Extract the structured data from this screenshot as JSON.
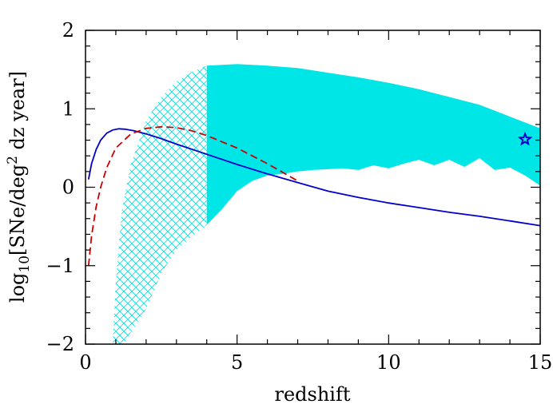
{
  "chart_data": {
    "type": "line",
    "xlabel": "redshift",
    "ylabel": {
      "prefix": "log",
      "subscript": "10",
      "body": "[SNe/deg",
      "superscript": "2",
      "suffix": " dz year]"
    },
    "xlim": [
      0,
      15
    ],
    "ylim": [
      -2,
      2
    ],
    "x_ticks": [
      0,
      5,
      10,
      15
    ],
    "x_tick_labels": [
      "0",
      "5",
      "10",
      "15"
    ],
    "y_ticks": [
      -2,
      -1,
      0,
      1,
      2
    ],
    "y_tick_labels": [
      "−2",
      "−1",
      "0",
      "1",
      "2"
    ],
    "colors": {
      "band": "#00e5e5",
      "solid_line": "#0000cc",
      "dashed_line": "#cc0000",
      "star": "#0000cc"
    },
    "band": {
      "crosshatch_range": [
        0,
        4
      ],
      "upper": [
        [
          0.9,
          -2.0
        ],
        [
          1.0,
          -1.2
        ],
        [
          1.2,
          -0.3
        ],
        [
          1.5,
          0.3
        ],
        [
          2.0,
          0.85
        ],
        [
          2.5,
          1.15
        ],
        [
          3.0,
          1.35
        ],
        [
          3.5,
          1.47
        ],
        [
          4.0,
          1.55
        ],
        [
          5.0,
          1.57
        ],
        [
          6.0,
          1.55
        ],
        [
          7.0,
          1.52
        ],
        [
          8.0,
          1.46
        ],
        [
          9.0,
          1.4
        ],
        [
          10.0,
          1.33
        ],
        [
          11.0,
          1.25
        ],
        [
          12.0,
          1.15
        ],
        [
          13.0,
          1.05
        ],
        [
          14.0,
          0.9
        ],
        [
          15.0,
          0.75
        ]
      ],
      "lower": [
        [
          1.25,
          -2.0
        ],
        [
          2.0,
          -1.55
        ],
        [
          2.5,
          -1.1
        ],
        [
          3.0,
          -0.8
        ],
        [
          3.5,
          -0.63
        ],
        [
          4.0,
          -0.48
        ],
        [
          4.5,
          -0.28
        ],
        [
          5.0,
          -0.05
        ],
        [
          5.5,
          0.08
        ],
        [
          6.0,
          0.15
        ],
        [
          6.5,
          0.17
        ],
        [
          7.0,
          0.2
        ],
        [
          7.5,
          0.22
        ],
        [
          8.0,
          0.23
        ],
        [
          8.5,
          0.24
        ],
        [
          9.0,
          0.22
        ],
        [
          9.5,
          0.28
        ],
        [
          10.0,
          0.24
        ],
        [
          10.5,
          0.3
        ],
        [
          11.0,
          0.35
        ],
        [
          11.5,
          0.28
        ],
        [
          12.0,
          0.35
        ],
        [
          12.5,
          0.26
        ],
        [
          13.0,
          0.37
        ],
        [
          13.5,
          0.22
        ],
        [
          14.0,
          0.25
        ],
        [
          14.5,
          0.15
        ],
        [
          15.0,
          0.02
        ]
      ]
    },
    "series": [
      {
        "style": "solid",
        "x": [
          0.1,
          0.2,
          0.35,
          0.5,
          0.7,
          0.9,
          1.1,
          1.3,
          1.6,
          2.0,
          2.5,
          3.0,
          4.0,
          5.0,
          6.0,
          7.0,
          8.0,
          9.0,
          10.0,
          11.0,
          12.0,
          13.0,
          14.0,
          15.0
        ],
        "y": [
          0.1,
          0.3,
          0.48,
          0.6,
          0.69,
          0.73,
          0.745,
          0.74,
          0.72,
          0.68,
          0.62,
          0.55,
          0.42,
          0.29,
          0.17,
          0.06,
          -0.05,
          -0.13,
          -0.2,
          -0.26,
          -0.32,
          -0.37,
          -0.43,
          -0.49
        ]
      },
      {
        "style": "dashed",
        "x": [
          0.1,
          0.2,
          0.35,
          0.5,
          0.7,
          1.0,
          1.5,
          2.0,
          2.5,
          3.0,
          3.5,
          4.0,
          5.0,
          6.0,
          6.5,
          7.0
        ],
        "y": [
          -1.0,
          -0.62,
          -0.25,
          0.0,
          0.25,
          0.5,
          0.68,
          0.75,
          0.77,
          0.76,
          0.72,
          0.66,
          0.5,
          0.3,
          0.19,
          0.08
        ]
      }
    ],
    "markers": [
      {
        "shape": "star",
        "x": 14.5,
        "y": 0.61
      }
    ]
  }
}
